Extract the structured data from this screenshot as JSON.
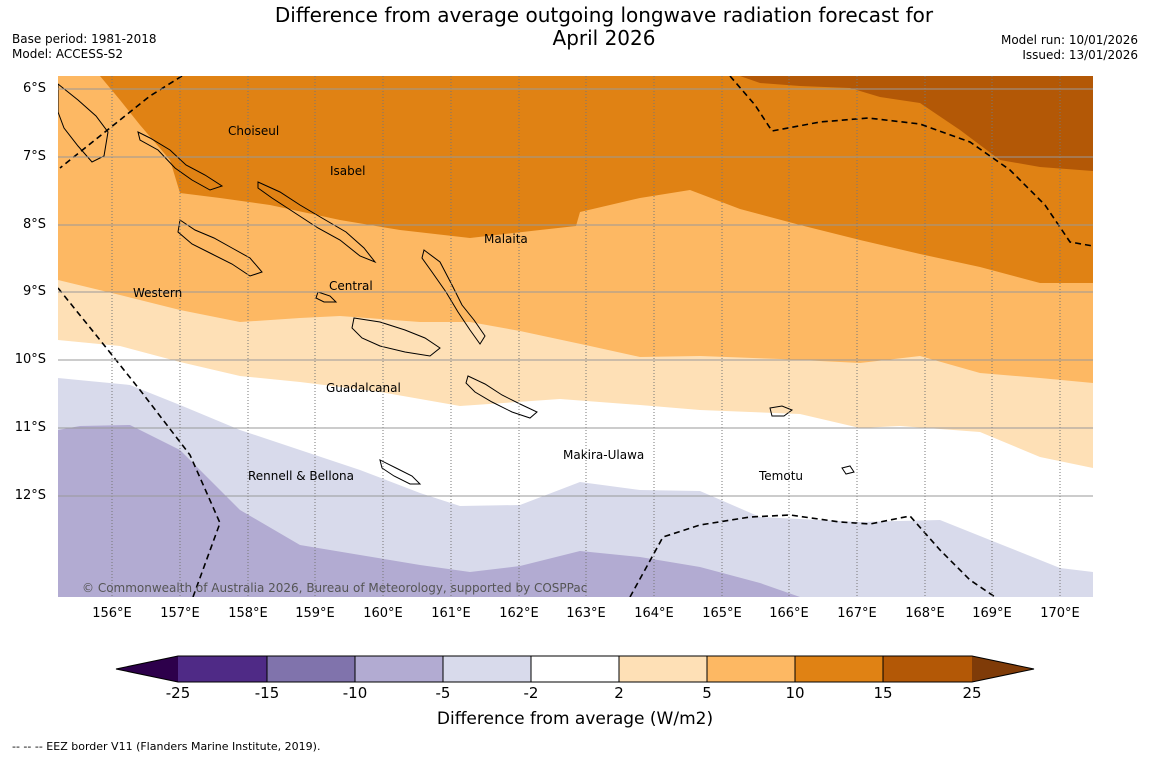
{
  "header": {
    "title_line1": "Difference from average outgoing longwave radiation forecast for",
    "title_line2": "April 2026",
    "base_period": "Base period: 1981-2018",
    "model": "Model: ACCESS-S2",
    "model_run": "Model run: 10/01/2026",
    "issued": "Issued: 13/01/2026"
  },
  "axes": {
    "lat_labels": [
      "6°S",
      "7°S",
      "8°S",
      "9°S",
      "10°S",
      "11°S",
      "12°S"
    ],
    "lon_labels": [
      "156°E",
      "157°E",
      "158°E",
      "159°E",
      "160°E",
      "161°E",
      "162°E",
      "163°E",
      "164°E",
      "165°E",
      "166°E",
      "167°E",
      "168°E",
      "169°E",
      "170°E"
    ]
  },
  "regions": {
    "choiseul": "Choiseul",
    "isabel": "Isabel",
    "malaita": "Malaita",
    "western": "Western",
    "central": "Central",
    "guadalcanal": "Guadalcanal",
    "makira": "Makira-Ulawa",
    "temotu": "Temotu",
    "rennell": "Rennell & Bellona"
  },
  "copyright": "© Commonwealth of Australia 2026, Bureau of Meteorology, supported by COSPPac",
  "colorbar": {
    "title": "Difference from average (W/m2)",
    "ticks": [
      "-25",
      "-15",
      "-10",
      "-5",
      "-2",
      "2",
      "5",
      "10",
      "15",
      "25"
    ],
    "colors": [
      "#4f2a86",
      "#8073ac",
      "#b2abd2",
      "#d8daeb",
      "#ffffff",
      "#fee0b6",
      "#fdb863",
      "#e08214",
      "#b35806"
    ],
    "under_color": "#2d004b",
    "over_color": "#7f3b08"
  },
  "footer": "--  --  -- EEZ border V11 (Flanders Marine Institute, 2019)."
}
